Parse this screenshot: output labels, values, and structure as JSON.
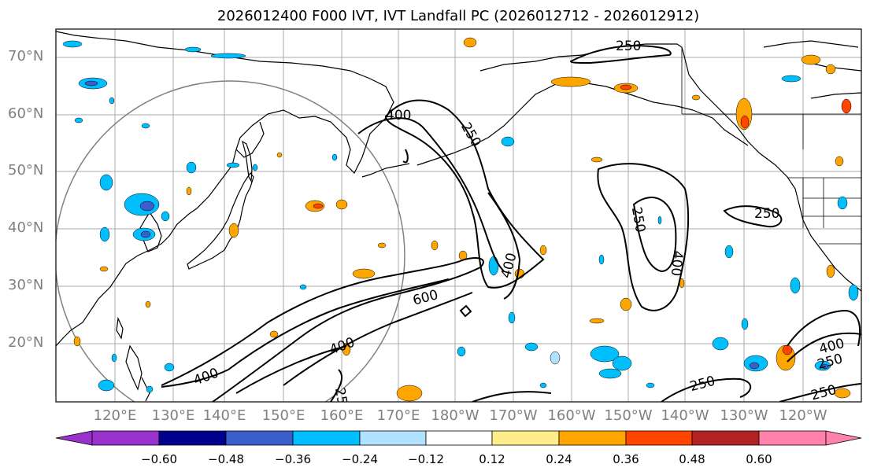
{
  "title": "2026012400 F000 IVT, IVT Landfall PC (2026012712 - 2026012912)",
  "lat_labels": [
    "70°N",
    "60°N",
    "50°N",
    "40°N",
    "30°N",
    "20°N"
  ],
  "lon_labels": [
    "120°E",
    "130°E",
    "140°E",
    "150°E",
    "160°E",
    "170°E",
    "180°W",
    "170°W",
    "160°W",
    "150°W",
    "140°W",
    "130°W",
    "120°W"
  ],
  "contour_labels": {
    "c1": "250",
    "c2": "400",
    "c3": "250",
    "c4": "250",
    "c5": "400",
    "c6": "400",
    "c7": "250",
    "c8": "600",
    "c9": "400",
    "c10": "400",
    "c11": "400",
    "c12": "250",
    "c13": "250",
    "c14": "250",
    "c15": "25"
  },
  "colorbar": {
    "ticks": [
      "−0.60",
      "−0.48",
      "−0.36",
      "−0.24",
      "−0.12",
      "0.12",
      "0.24",
      "0.36",
      "0.48",
      "0.60"
    ],
    "colors": [
      "#9932cc",
      "#00008b",
      "#3a5fcd",
      "#00bfff",
      "#b0e2ff",
      "#ffffff",
      "#ffec8b",
      "#ffa500",
      "#ff4500",
      "#b22222",
      "#ff82ab",
      "#ff82ab"
    ]
  },
  "colors": {
    "neg_light": "#b0e2ff",
    "neg_mid": "#00bfff",
    "neg_dark": "#3a5fcd",
    "pos_light": "#ffec8b",
    "pos_mid": "#ffa500",
    "pos_dark": "#ff4500",
    "gridline": "#a9a9a9",
    "circle": "#808080"
  }
}
